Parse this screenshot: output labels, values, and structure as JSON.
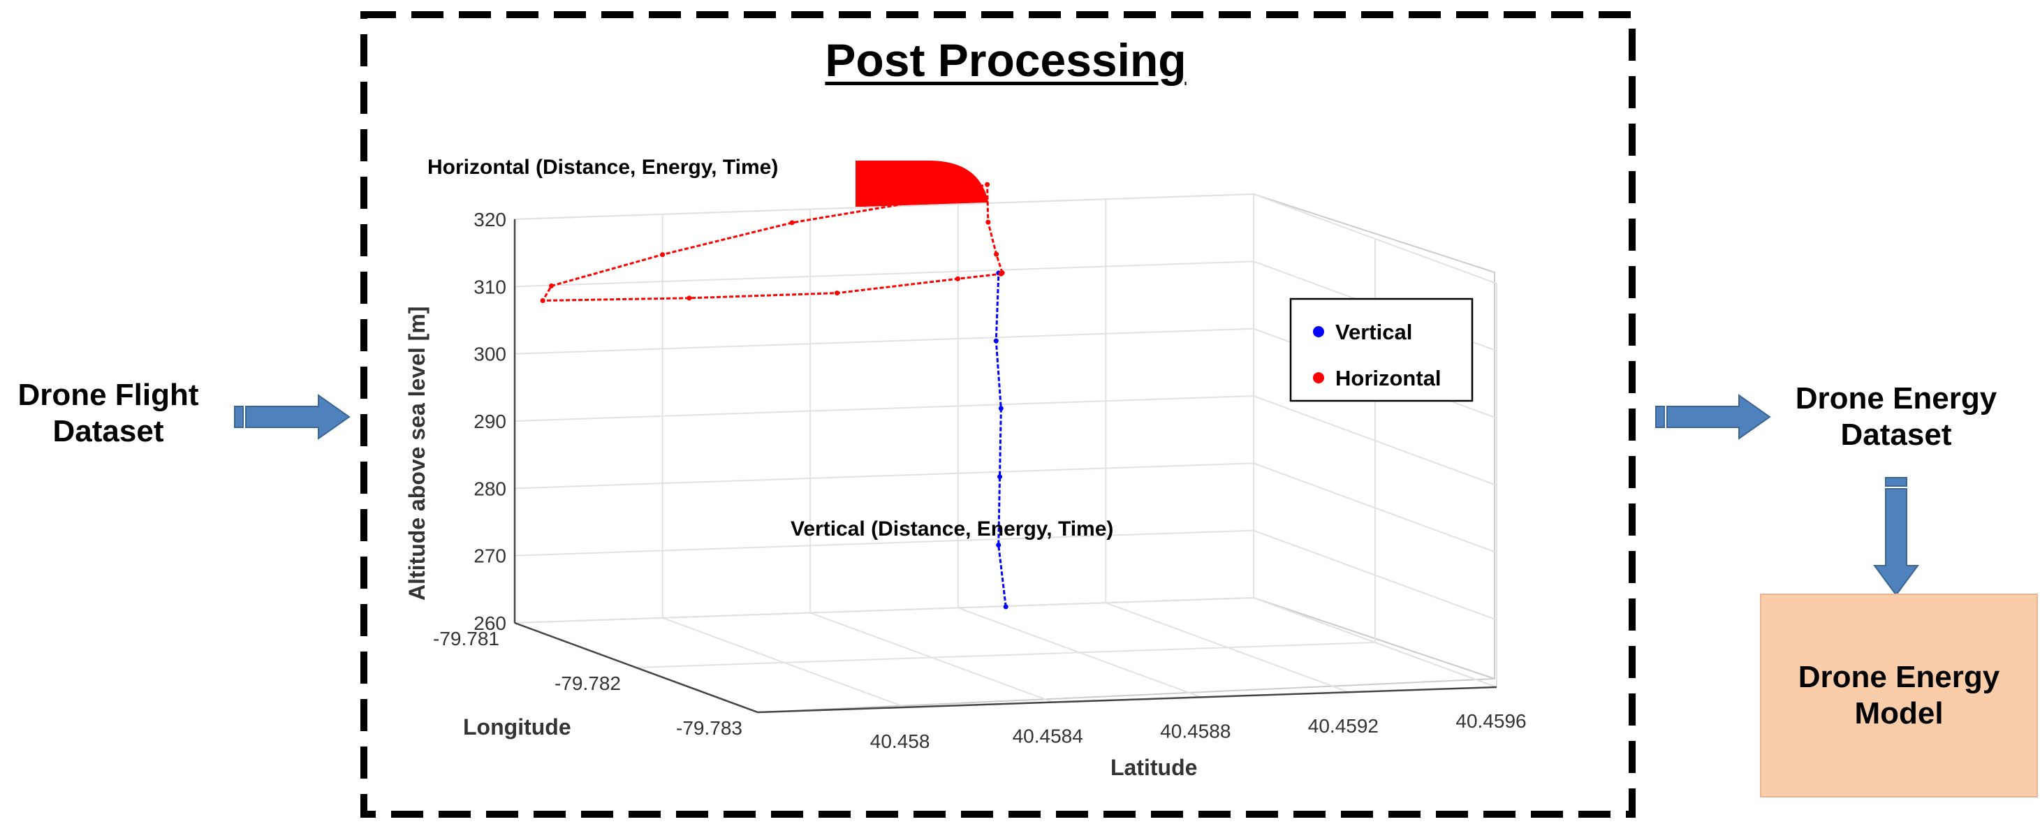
{
  "inputs": {
    "flight_dataset": "Drone Flight\nDataset"
  },
  "post_processing": {
    "title": "Post Processing",
    "annotation_horizontal": "Horizontal (Distance, Energy, Time)",
    "annotation_vertical": "Vertical (Distance, Energy, Time)"
  },
  "outputs": {
    "energy_dataset": "Drone Energy\nDataset",
    "energy_model": "Drone Energy\nModel"
  },
  "colors": {
    "arrow_fill": "#4f81bd",
    "arrow_stroke": "#3a6594",
    "vertical_color": "#0000ff",
    "horizontal_color": "#ff0000",
    "model_box_fill": "#f9ccaa"
  },
  "chart_data": {
    "type": "line-3d",
    "title": "",
    "xlabel": "Latitude",
    "ylabel": "Longitude",
    "zlabel": "Altitude above sea level [m]",
    "x_ticks": [
      "40.458",
      "40.4584",
      "40.4588",
      "40.4592",
      "40.4596"
    ],
    "y_ticks": [
      "-79.781",
      "-79.782",
      "-79.783"
    ],
    "z_ticks": [
      "320",
      "310",
      "300",
      "290",
      "280",
      "270",
      "260"
    ],
    "xlim": [
      40.4576,
      40.4596
    ],
    "ylim": [
      -79.781,
      -79.783
    ],
    "zlim": [
      260,
      320
    ],
    "grid": true,
    "legend": {
      "placement": "right",
      "entries": [
        {
          "name": "Vertical",
          "color": "#0000ff"
        },
        {
          "name": "Horizontal",
          "color": "#ff0000"
        }
      ]
    },
    "series": [
      {
        "name": "Vertical",
        "color": "#0000ff",
        "points": [
          {
            "lat": 40.45888,
            "lon": -79.78115,
            "alt": 261
          },
          {
            "lat": 40.45887,
            "lon": -79.78112,
            "alt": 270
          },
          {
            "lat": 40.45888,
            "lon": -79.7811,
            "alt": 280
          },
          {
            "lat": 40.45889,
            "lon": -79.78108,
            "alt": 290
          },
          {
            "lat": 40.45888,
            "lon": -79.78107,
            "alt": 300
          },
          {
            "lat": 40.45889,
            "lon": -79.78106,
            "alt": 310
          }
        ]
      },
      {
        "name": "Horizontal",
        "color": "#ff0000",
        "points": [
          {
            "lat": 40.4589,
            "lon": -79.78106,
            "alt": 310
          },
          {
            "lat": 40.45892,
            "lon": -79.78095,
            "alt": 312
          },
          {
            "lat": 40.45898,
            "lon": -79.7807,
            "alt": 315
          },
          {
            "lat": 40.45905,
            "lon": -79.78048,
            "alt": 319
          },
          {
            "lat": 40.4588,
            "lon": -79.78065,
            "alt": 318
          },
          {
            "lat": 40.4584,
            "lon": -79.78085,
            "alt": 317
          },
          {
            "lat": 40.458,
            "lon": -79.781,
            "alt": 314
          },
          {
            "lat": 40.45765,
            "lon": -79.78115,
            "alt": 311
          },
          {
            "lat": 40.45762,
            "lon": -79.78117,
            "alt": 309
          },
          {
            "lat": 40.458,
            "lon": -79.78122,
            "alt": 309
          },
          {
            "lat": 40.4584,
            "lon": -79.78122,
            "alt": 309
          },
          {
            "lat": 40.45875,
            "lon": -79.78115,
            "alt": 310
          },
          {
            "lat": 40.45889,
            "lon": -79.78108,
            "alt": 310
          }
        ]
      }
    ]
  }
}
